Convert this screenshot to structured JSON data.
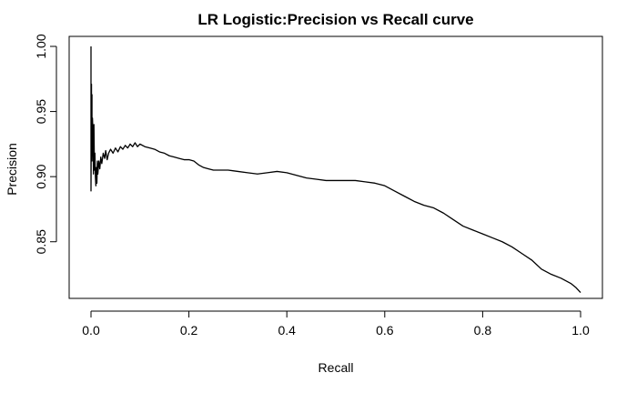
{
  "chart_data": {
    "type": "line",
    "title": "LR Logistic:Precision vs Recall curve",
    "xlabel": "Recall",
    "ylabel": "Precision",
    "xlim": [
      0.0,
      1.0
    ],
    "ylim": [
      0.81,
      1.0
    ],
    "x_ticks": [
      0.0,
      0.2,
      0.4,
      0.6,
      0.8,
      1.0
    ],
    "x_tick_labels": [
      "0.0",
      "0.2",
      "0.4",
      "0.6",
      "0.8",
      "1.0"
    ],
    "y_ticks": [
      0.85,
      0.9,
      0.95,
      1.0
    ],
    "y_tick_labels": [
      "0.85",
      "0.90",
      "0.95",
      "1.00"
    ],
    "grid": false,
    "legend": "none",
    "series": [
      {
        "color": "#000000",
        "x": [
          0.0,
          0.0,
          0.001,
          0.001,
          0.002,
          0.002,
          0.003,
          0.004,
          0.005,
          0.006,
          0.007,
          0.008,
          0.009,
          0.01,
          0.011,
          0.012,
          0.013,
          0.014,
          0.016,
          0.018,
          0.02,
          0.022,
          0.025,
          0.028,
          0.03,
          0.033,
          0.036,
          0.04,
          0.045,
          0.05,
          0.055,
          0.06,
          0.065,
          0.07,
          0.075,
          0.08,
          0.085,
          0.09,
          0.095,
          0.1,
          0.11,
          0.12,
          0.13,
          0.14,
          0.15,
          0.16,
          0.17,
          0.18,
          0.19,
          0.2,
          0.21,
          0.22,
          0.23,
          0.24,
          0.25,
          0.26,
          0.28,
          0.3,
          0.32,
          0.34,
          0.36,
          0.38,
          0.4,
          0.42,
          0.44,
          0.46,
          0.48,
          0.5,
          0.52,
          0.54,
          0.56,
          0.58,
          0.6,
          0.62,
          0.64,
          0.66,
          0.68,
          0.7,
          0.72,
          0.74,
          0.76,
          0.78,
          0.8,
          0.82,
          0.84,
          0.86,
          0.88,
          0.9,
          0.92,
          0.94,
          0.96,
          0.97,
          0.98,
          0.99,
          1.0
        ],
        "y": [
          1.0,
          0.889,
          0.971,
          0.929,
          0.963,
          0.912,
          0.945,
          0.935,
          0.902,
          0.94,
          0.905,
          0.918,
          0.9,
          0.893,
          0.907,
          0.895,
          0.912,
          0.902,
          0.912,
          0.906,
          0.915,
          0.91,
          0.918,
          0.914,
          0.92,
          0.913,
          0.918,
          0.921,
          0.918,
          0.922,
          0.919,
          0.923,
          0.921,
          0.924,
          0.922,
          0.925,
          0.923,
          0.926,
          0.923,
          0.925,
          0.923,
          0.922,
          0.921,
          0.919,
          0.918,
          0.916,
          0.915,
          0.914,
          0.913,
          0.913,
          0.912,
          0.909,
          0.907,
          0.906,
          0.905,
          0.905,
          0.905,
          0.904,
          0.903,
          0.902,
          0.903,
          0.904,
          0.903,
          0.901,
          0.899,
          0.898,
          0.897,
          0.897,
          0.897,
          0.897,
          0.896,
          0.895,
          0.893,
          0.889,
          0.885,
          0.881,
          0.878,
          0.876,
          0.872,
          0.867,
          0.862,
          0.859,
          0.856,
          0.853,
          0.85,
          0.846,
          0.841,
          0.836,
          0.829,
          0.825,
          0.822,
          0.82,
          0.818,
          0.815,
          0.811
        ]
      }
    ]
  }
}
